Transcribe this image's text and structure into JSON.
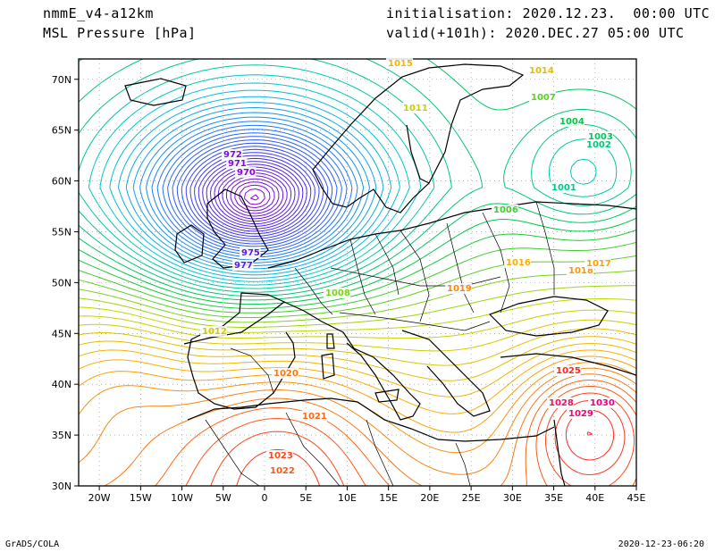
{
  "header": {
    "model": "nmmE_v4-a12km",
    "field": "MSL Pressure [hPa]",
    "initialisation": "initialisation: 2020.12.23.  00:00 UTC",
    "valid": "valid(+101h): 2020.DEC.27 05:00 UTC"
  },
  "footer": {
    "left": "GrADS/COLA",
    "right": "2020-12-23-06:20"
  },
  "axes": {
    "lat_labels": [
      "70N",
      "65N",
      "60N",
      "55N",
      "50N",
      "45N",
      "40N",
      "35N",
      "30N"
    ],
    "lon_labels": [
      "20W",
      "15W",
      "10W",
      "5W",
      "0",
      "5E",
      "10E",
      "15E",
      "20E",
      "25E",
      "30E",
      "35E",
      "40E",
      "45E"
    ]
  },
  "pressure_systems": {
    "low_center_value": "970",
    "low_labels": [
      "970",
      "971",
      "972",
      "975",
      "977"
    ],
    "high_labels": [
      "1023",
      "1022",
      "1021",
      "1020",
      "1025",
      "1028",
      "1029",
      "1030"
    ],
    "mid_labels": [
      "1015",
      "1014",
      "1007",
      "1004",
      "1003",
      "1002",
      "1001",
      "1006",
      "1018",
      "1017",
      "1019",
      "1016",
      "1008",
      "1011",
      "1012"
    ]
  },
  "colors": {
    "low": "#9a00d6",
    "mid_low": "#1a4fff",
    "mid": "#00c85a",
    "mid_high": "#c8d800",
    "high": "#ff8a00",
    "very_high": "#ff0000",
    "extreme": "#e6008c"
  }
}
